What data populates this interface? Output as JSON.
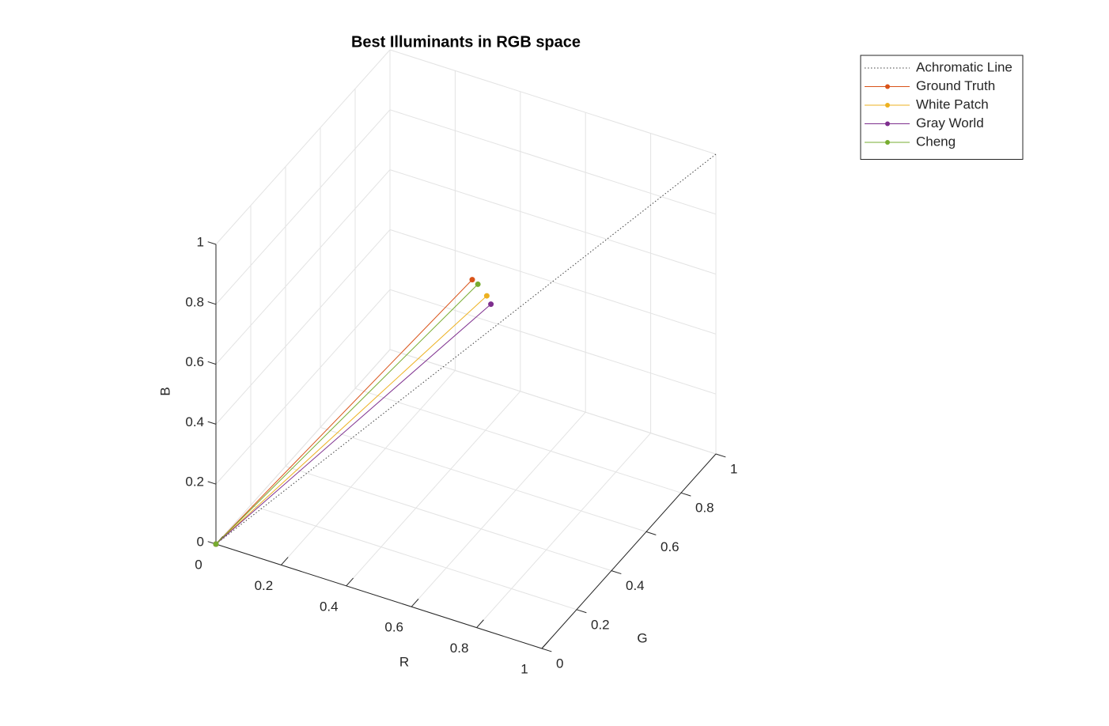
{
  "chart_data": {
    "type": "line3d",
    "title": "Best Illuminants in RGB space",
    "xlabel": "R",
    "ylabel": "G",
    "zlabel": "B",
    "xlim": [
      0,
      1
    ],
    "ylim": [
      0,
      1
    ],
    "zlim": [
      0,
      1
    ],
    "xticks": [
      0,
      0.2,
      0.4,
      0.6,
      0.8,
      1
    ],
    "yticks": [
      0,
      0.2,
      0.4,
      0.6,
      0.8,
      1
    ],
    "zticks": [
      0,
      0.2,
      0.4,
      0.6,
      0.8,
      1
    ],
    "grid": true,
    "legend": "northeast-outside",
    "series": [
      {
        "name": "Achromatic Line",
        "color": "#404040",
        "style": "dotted",
        "marker": false,
        "x": [
          0,
          1
        ],
        "y": [
          0,
          1
        ],
        "z": [
          0,
          1
        ]
      },
      {
        "name": "Ground Truth",
        "color": "#D95319",
        "style": "solid",
        "marker": true,
        "x": [
          0,
          0.45
        ],
        "y": [
          0,
          0.63
        ],
        "z": [
          0,
          0.63
        ]
      },
      {
        "name": "White Patch",
        "color": "#EDB120",
        "style": "solid",
        "marker": true,
        "x": [
          0,
          0.5
        ],
        "y": [
          0,
          0.62
        ],
        "z": [
          0,
          0.6
        ]
      },
      {
        "name": "Gray World",
        "color": "#7E2F8E",
        "style": "solid",
        "marker": true,
        "x": [
          0,
          0.55
        ],
        "y": [
          0,
          0.55
        ],
        "z": [
          0,
          0.635
        ]
      },
      {
        "name": "Cheng",
        "color": "#77AC30",
        "style": "solid",
        "marker": true,
        "x": [
          0,
          0.47
        ],
        "y": [
          0,
          0.625
        ],
        "z": [
          0,
          0.625
        ]
      }
    ]
  }
}
